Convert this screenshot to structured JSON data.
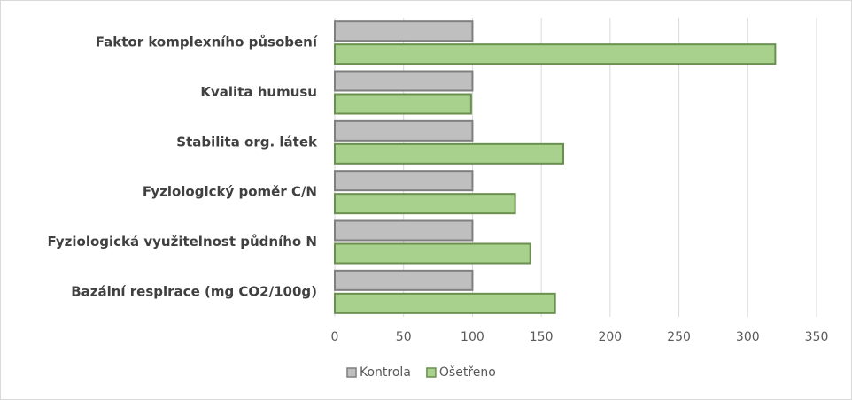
{
  "chart_data": {
    "type": "bar",
    "orientation": "horizontal",
    "categories": [
      "Faktor komplexního působení",
      "Kvalita humusu",
      "Stabilita org. látek",
      "Fyziologický poměr C/N",
      "Fyziologická využitelnost půdního N",
      "Bazální respirace (mg CO2/100g)"
    ],
    "series": [
      {
        "name": "Kontrola",
        "color": "#bfbfbf",
        "values": [
          100,
          100,
          100,
          100,
          100,
          100
        ]
      },
      {
        "name": "Ošetřeno",
        "color": "#a9d18e",
        "values": [
          320,
          99,
          166,
          131,
          142,
          160
        ]
      }
    ],
    "xlim": [
      0,
      350
    ],
    "xticks": [
      0,
      50,
      100,
      150,
      200,
      250,
      300,
      350
    ],
    "grid": true,
    "legend": "bottom"
  }
}
